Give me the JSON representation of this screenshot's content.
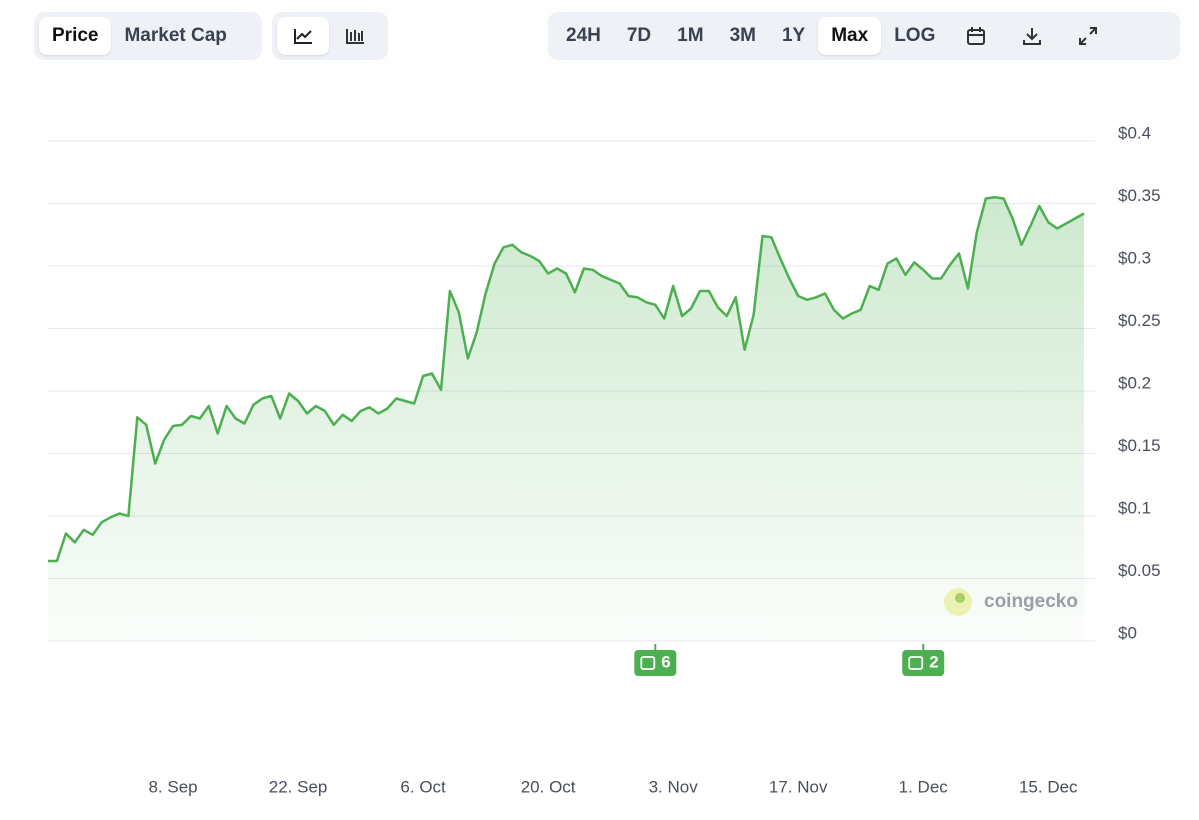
{
  "controls": {
    "views": [
      "Price",
      "Market Cap"
    ],
    "ranges": [
      "24H",
      "7D",
      "1M",
      "3M",
      "1Y",
      "Max",
      "LOG"
    ]
  },
  "chart_data": {
    "type": "line",
    "color": "#4caf50",
    "grid": true,
    "watermark": "coingecko",
    "categories": [
      null,
      null,
      null,
      null,
      null,
      null,
      null,
      null,
      null,
      null,
      null,
      null,
      null,
      null,
      "8. Sep",
      null,
      null,
      null,
      null,
      null,
      null,
      null,
      null,
      null,
      null,
      null,
      null,
      null,
      "22. Sep",
      null,
      null,
      null,
      null,
      null,
      null,
      null,
      null,
      null,
      null,
      null,
      null,
      null,
      "6. Oct",
      null,
      null,
      null,
      null,
      null,
      null,
      null,
      null,
      null,
      null,
      null,
      null,
      null,
      "20. Oct",
      null,
      null,
      null,
      null,
      null,
      null,
      null,
      null,
      null,
      null,
      null,
      null,
      null,
      "3. Nov",
      null,
      null,
      null,
      null,
      null,
      null,
      null,
      null,
      null,
      null,
      null,
      null,
      null,
      "17. Nov",
      null,
      null,
      null,
      null,
      null,
      null,
      null,
      null,
      null,
      null,
      null,
      null,
      null,
      "1. Dec",
      null,
      null,
      null,
      null,
      null,
      null,
      null,
      null,
      null,
      null,
      null,
      null,
      null,
      "15. Dec",
      null,
      null,
      null,
      null
    ],
    "values": [
      0.064,
      0.064,
      0.086,
      0.079,
      0.089,
      0.085,
      0.095,
      0.099,
      0.102,
      0.1,
      0.179,
      0.173,
      0.142,
      0.161,
      0.172,
      0.173,
      0.18,
      0.178,
      0.188,
      0.166,
      0.188,
      0.178,
      0.174,
      0.189,
      0.194,
      0.196,
      0.178,
      0.198,
      0.192,
      0.182,
      0.188,
      0.184,
      0.173,
      0.181,
      0.176,
      0.184,
      0.187,
      0.182,
      0.186,
      0.194,
      0.192,
      0.19,
      0.212,
      0.214,
      0.201,
      0.28,
      0.263,
      0.226,
      0.247,
      0.278,
      0.302,
      0.315,
      0.317,
      0.311,
      0.308,
      0.304,
      0.294,
      0.298,
      0.294,
      0.279,
      0.298,
      0.297,
      0.292,
      0.289,
      0.286,
      0.276,
      0.275,
      0.271,
      0.269,
      0.258,
      0.284,
      0.26,
      0.266,
      0.28,
      0.28,
      0.267,
      0.26,
      0.275,
      0.233,
      0.261,
      0.324,
      0.323,
      0.306,
      0.29,
      0.276,
      0.273,
      0.275,
      0.278,
      0.265,
      0.258,
      0.262,
      0.265,
      0.284,
      0.281,
      0.302,
      0.306,
      0.293,
      0.303,
      0.297,
      0.29,
      0.29,
      0.301,
      0.31,
      0.282,
      0.327,
      0.354,
      0.355,
      0.354,
      0.338,
      0.317,
      0.332,
      0.348,
      0.335,
      0.33,
      0.334,
      0.338,
      0.342
    ],
    "ylim": [
      0,
      0.4
    ],
    "yticks": [
      {
        "value": 0,
        "label": "$0"
      },
      {
        "value": 0.05,
        "label": "$0.05"
      },
      {
        "value": 0.1,
        "label": "$0.1"
      },
      {
        "value": 0.15,
        "label": "$0.15"
      },
      {
        "value": 0.2,
        "label": "$0.2"
      },
      {
        "value": 0.25,
        "label": "$0.25"
      },
      {
        "value": 0.3,
        "label": "$0.3"
      },
      {
        "value": 0.35,
        "label": "$0.35"
      },
      {
        "value": 0.4,
        "label": "$0.4"
      }
    ],
    "annotations": [
      {
        "label": "6"
      },
      {
        "label": "2"
      }
    ]
  }
}
